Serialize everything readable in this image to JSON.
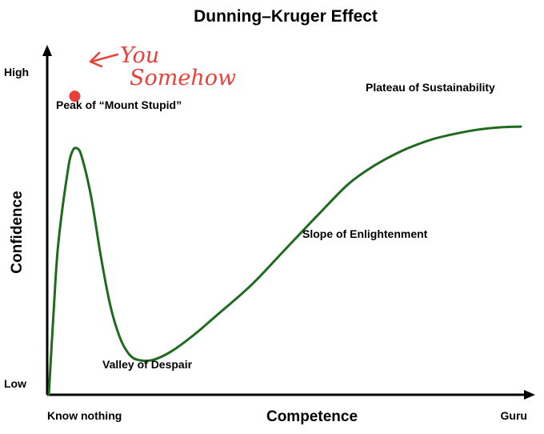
{
  "chart_data": {
    "type": "line",
    "title": "Dunning–Kruger Effect",
    "xlabel": "Competence",
    "ylabel": "Confidence",
    "x_ticks": [
      "Know nothing",
      "Guru"
    ],
    "y_ticks": [
      "Low",
      "High"
    ],
    "xlim": [
      0,
      100
    ],
    "ylim": [
      0,
      100
    ],
    "grid": false,
    "legend": "none",
    "line_color": "#1e6b1e",
    "series": [
      {
        "x": [
          0,
          1,
          2,
          4,
          5,
          6,
          7,
          9,
          11,
          13,
          15,
          17,
          19,
          22,
          26,
          31,
          36,
          43,
          50,
          57,
          63,
          67,
          71,
          76,
          81,
          86,
          91,
          96,
          100
        ],
        "y": [
          0,
          28,
          52,
          77,
          84,
          85,
          82,
          68,
          48,
          31,
          20,
          14,
          12,
          12,
          15,
          21,
          28,
          38,
          50,
          62,
          72,
          77,
          81,
          85,
          88,
          90,
          91.5,
          92.3,
          92.5
        ]
      }
    ],
    "annotations": [
      {
        "text": "Peak of “Mount Stupid”"
      },
      {
        "text": "Valley of Despair"
      },
      {
        "text": "Slope of Enlightenment"
      },
      {
        "text": "Plateau of Sustainability"
      }
    ],
    "marker": {
      "x": 5.5,
      "y": 103,
      "color": "#e8413a",
      "label_lines": [
        "You",
        "Somehow"
      ]
    }
  }
}
